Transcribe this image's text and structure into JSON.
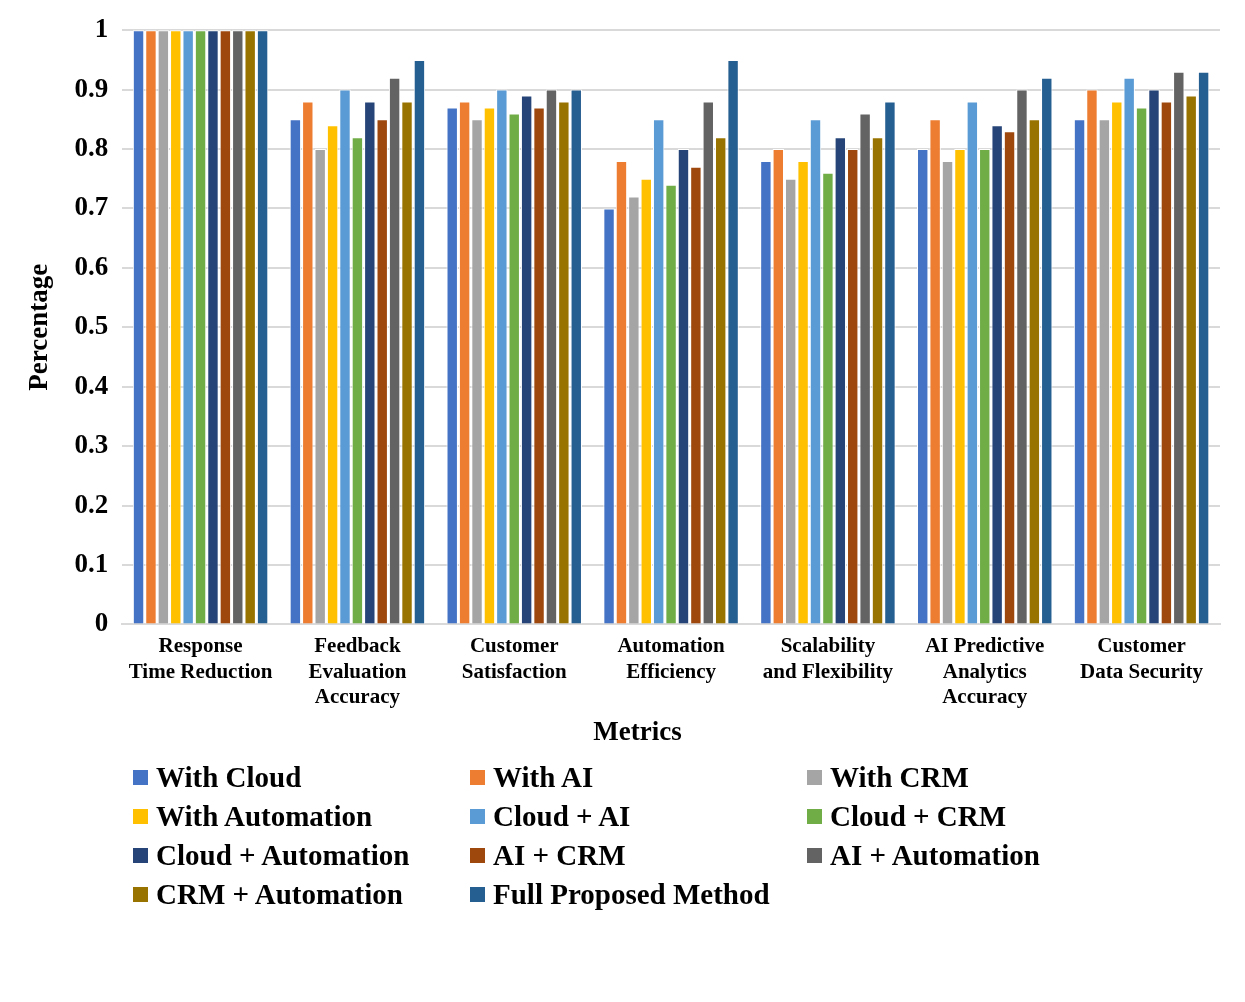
{
  "chart_data": {
    "type": "bar",
    "xlabel": "Metrics",
    "ylabel": "Percentage",
    "categories": [
      "Response Time Reduction",
      "Feedback Evaluation Accuracy",
      "Customer Satisfaction",
      "Automation Efficiency",
      "Scalability and Flexibility",
      "AI Predictive Analytics Accuracy",
      "Customer Data Security"
    ],
    "series": [
      {
        "name": "With Cloud",
        "color": "#4472c4",
        "values": [
          1,
          0.85,
          0.87,
          0.7,
          0.78,
          0.8,
          0.85
        ]
      },
      {
        "name": "With AI",
        "color": "#ed7d31",
        "values": [
          1,
          0.88,
          0.88,
          0.78,
          0.8,
          0.85,
          0.9
        ]
      },
      {
        "name": "With CRM",
        "color": "#a5a5a5",
        "values": [
          1,
          0.8,
          0.85,
          0.72,
          0.75,
          0.78,
          0.85
        ]
      },
      {
        "name": "With Automation",
        "color": "#ffc000",
        "values": [
          1,
          0.84,
          0.87,
          0.75,
          0.78,
          0.8,
          0.88
        ]
      },
      {
        "name": "Cloud + AI",
        "color": "#5b9bd5",
        "values": [
          1,
          0.9,
          0.9,
          0.85,
          0.85,
          0.88,
          0.92
        ]
      },
      {
        "name": "Cloud + CRM",
        "color": "#70ad47",
        "values": [
          1,
          0.82,
          0.86,
          0.74,
          0.76,
          0.8,
          0.87
        ]
      },
      {
        "name": "Cloud + Automation",
        "color": "#264478",
        "values": [
          1,
          0.88,
          0.89,
          0.8,
          0.82,
          0.84,
          0.9
        ]
      },
      {
        "name": "AI + CRM",
        "color": "#9e480e",
        "values": [
          1,
          0.85,
          0.87,
          0.77,
          0.8,
          0.83,
          0.88
        ]
      },
      {
        "name": "AI + Automation",
        "color": "#636363",
        "values": [
          1,
          0.92,
          0.9,
          0.88,
          0.86,
          0.9,
          0.93
        ]
      },
      {
        "name": "CRM + Automation",
        "color": "#997300",
        "values": [
          1,
          0.88,
          0.88,
          0.82,
          0.82,
          0.85,
          0.89
        ]
      },
      {
        "name": "Full Proposed Method",
        "color": "#255e91",
        "values": [
          1,
          0.95,
          0.9,
          0.95,
          0.88,
          0.92,
          0.93
        ]
      }
    ],
    "ylim": [
      0,
      1
    ],
    "yticks": [
      0,
      0.1,
      0.2,
      0.3,
      0.4,
      0.5,
      0.6,
      0.7,
      0.8,
      0.9,
      1
    ],
    "grid": "y",
    "legend": "bottom"
  }
}
